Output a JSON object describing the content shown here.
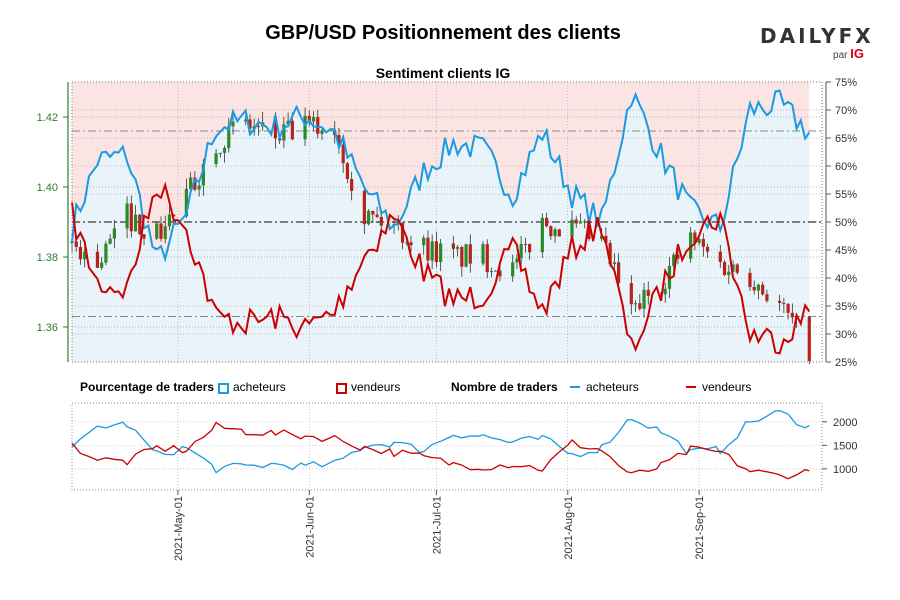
{
  "header": {
    "title": "GBP/USD Positionnement des clients",
    "subtitle": "Sentiment clients IG",
    "brand": {
      "name_left": "DAILY",
      "name_right": "FX",
      "by": "par",
      "by_brand": "IG"
    }
  },
  "colors": {
    "buyers": "#1a9ae0",
    "sellers": "#cc0000",
    "up_candle": "#2a8a2a",
    "down_candle": "#b8221a",
    "bg_buyers": "#e8f3fa",
    "bg_sellers": "#fbe4e4",
    "left_axis": "#2e7d2e"
  },
  "legend": {
    "pct_label": "Pourcentage de traders",
    "pct_buyers": "acheteurs",
    "pct_sellers": "vendeurs",
    "count_label": "Nombre de traders",
    "count_buyers": "acheteurs",
    "count_sellers": "vendeurs"
  },
  "chart_data": [
    {
      "type": "candlestick",
      "title": "Sentiment clients IG",
      "y_left_label": "",
      "y_left_ticks": [
        "1.36",
        "1.38",
        "1.40",
        "1.42"
      ],
      "y_left_range": [
        1.35,
        1.43
      ],
      "y_right_ticks": [
        "25%",
        "30%",
        "35%",
        "40%",
        "45%",
        "50%",
        "55%",
        "60%",
        "65%",
        "70%",
        "75%"
      ],
      "y_right_range": [
        25,
        75
      ],
      "x_range": [
        "2021-04-06",
        "2021-09-30"
      ],
      "x_ticks": [
        "2021-May-01",
        "2021-Jun-01",
        "2021-Jul-01",
        "2021-Aug-01",
        "2021-Sep-01"
      ],
      "reference_lines": [
        {
          "y": 1.363
        },
        {
          "y": 1.39
        },
        {
          "y": 1.416
        }
      ],
      "price_close_weekly": [
        [
          "2021-04-06",
          1.384
        ],
        [
          "2021-04-12",
          1.378
        ],
        [
          "2021-04-19",
          1.392
        ],
        [
          "2021-04-26",
          1.386
        ],
        [
          "2021-05-03",
          1.397
        ],
        [
          "2021-05-10",
          1.413
        ],
        [
          "2021-05-17",
          1.418
        ],
        [
          "2021-05-24",
          1.414
        ],
        [
          "2021-05-31",
          1.417
        ],
        [
          "2021-06-07",
          1.417
        ],
        [
          "2021-06-14",
          1.392
        ],
        [
          "2021-06-21",
          1.389
        ],
        [
          "2021-06-28",
          1.383
        ],
        [
          "2021-07-05",
          1.38
        ],
        [
          "2021-07-12",
          1.38
        ],
        [
          "2021-07-19",
          1.376
        ],
        [
          "2021-07-26",
          1.39
        ],
        [
          "2021-08-02",
          1.388
        ],
        [
          "2021-08-09",
          1.384
        ],
        [
          "2021-08-16",
          1.364
        ],
        [
          "2021-08-23",
          1.373
        ],
        [
          "2021-08-30",
          1.385
        ],
        [
          "2021-09-06",
          1.378
        ],
        [
          "2021-09-13",
          1.375
        ],
        [
          "2021-09-20",
          1.366
        ],
        [
          "2021-09-27",
          1.354
        ]
      ],
      "series": [
        {
          "name": "acheteurs",
          "unit": "%",
          "points": [
            [
              "2021-04-06",
              49
            ],
            [
              "2021-04-12",
              61
            ],
            [
              "2021-04-19",
              62
            ],
            [
              "2021-04-26",
              43
            ],
            [
              "2021-05-03",
              51
            ],
            [
              "2021-05-10",
              67
            ],
            [
              "2021-05-17",
              68
            ],
            [
              "2021-05-24",
              67
            ],
            [
              "2021-05-31",
              69
            ],
            [
              "2021-06-07",
              66
            ],
            [
              "2021-06-14",
              56
            ],
            [
              "2021-06-21",
              49
            ],
            [
              "2021-06-28",
              59
            ],
            [
              "2021-07-05",
              64
            ],
            [
              "2021-07-12",
              63
            ],
            [
              "2021-07-19",
              55
            ],
            [
              "2021-07-26",
              66
            ],
            [
              "2021-08-02",
              55
            ],
            [
              "2021-08-09",
              50
            ],
            [
              "2021-08-16",
              73
            ],
            [
              "2021-08-23",
              62
            ],
            [
              "2021-08-30",
              52
            ],
            [
              "2021-09-06",
              49
            ],
            [
              "2021-09-13",
              70
            ],
            [
              "2021-09-20",
              71
            ],
            [
              "2021-09-27",
              66
            ]
          ]
        },
        {
          "name": "vendeurs",
          "unit": "%",
          "points": [
            [
              "2021-04-06",
              51
            ],
            [
              "2021-04-12",
              39
            ],
            [
              "2021-04-19",
              38
            ],
            [
              "2021-04-26",
              57
            ],
            [
              "2021-05-03",
              49
            ],
            [
              "2021-05-10",
              33
            ],
            [
              "2021-05-17",
              32
            ],
            [
              "2021-05-24",
              33
            ],
            [
              "2021-05-31",
              31
            ],
            [
              "2021-06-07",
              34
            ],
            [
              "2021-06-14",
              44
            ],
            [
              "2021-06-21",
              51
            ],
            [
              "2021-06-28",
              41
            ],
            [
              "2021-07-05",
              36
            ],
            [
              "2021-07-12",
              37
            ],
            [
              "2021-07-19",
              45
            ],
            [
              "2021-07-26",
              34
            ],
            [
              "2021-08-02",
              45
            ],
            [
              "2021-08-09",
              50
            ],
            [
              "2021-08-16",
              27
            ],
            [
              "2021-08-23",
              38
            ],
            [
              "2021-08-30",
              48
            ],
            [
              "2021-09-06",
              51
            ],
            [
              "2021-09-13",
              30
            ],
            [
              "2021-09-20",
              29
            ],
            [
              "2021-09-27",
              34
            ]
          ]
        }
      ]
    },
    {
      "type": "line",
      "title": "Nombre de traders",
      "y_ticks": [
        "1000",
        "1500",
        "2000"
      ],
      "y_range": [
        550,
        2400
      ],
      "x_range": [
        "2021-04-06",
        "2021-09-30"
      ],
      "x_ticks": [
        "2021-May-01",
        "2021-Jun-01",
        "2021-Jul-01",
        "2021-Aug-01",
        "2021-Sep-01"
      ],
      "series": [
        {
          "name": "acheteurs",
          "points": [
            [
              "2021-04-06",
              1400
            ],
            [
              "2021-04-12",
              1900
            ],
            [
              "2021-04-19",
              1950
            ],
            [
              "2021-04-26",
              1300
            ],
            [
              "2021-05-03",
              1450
            ],
            [
              "2021-05-10",
              1000
            ],
            [
              "2021-05-17",
              1050
            ],
            [
              "2021-05-24",
              1100
            ],
            [
              "2021-05-31",
              1050
            ],
            [
              "2021-06-07",
              1100
            ],
            [
              "2021-06-14",
              1500
            ],
            [
              "2021-06-21",
              1550
            ],
            [
              "2021-06-28",
              1400
            ],
            [
              "2021-07-05",
              1750
            ],
            [
              "2021-07-12",
              1700
            ],
            [
              "2021-07-19",
              1550
            ],
            [
              "2021-07-26",
              1650
            ],
            [
              "2021-08-02",
              1300
            ],
            [
              "2021-08-09",
              1450
            ],
            [
              "2021-08-16",
              2100
            ],
            [
              "2021-08-23",
              1800
            ],
            [
              "2021-08-30",
              1350
            ],
            [
              "2021-09-06",
              1400
            ],
            [
              "2021-09-13",
              2000
            ],
            [
              "2021-09-20",
              2200
            ],
            [
              "2021-09-27",
              1900
            ]
          ]
        },
        {
          "name": "vendeurs",
          "points": [
            [
              "2021-04-06",
              1500
            ],
            [
              "2021-04-12",
              1200
            ],
            [
              "2021-04-19",
              1150
            ],
            [
              "2021-04-26",
              1450
            ],
            [
              "2021-05-03",
              1400
            ],
            [
              "2021-05-10",
              1900
            ],
            [
              "2021-05-17",
              1800
            ],
            [
              "2021-05-24",
              1750
            ],
            [
              "2021-05-31",
              1700
            ],
            [
              "2021-06-07",
              1650
            ],
            [
              "2021-06-14",
              1450
            ],
            [
              "2021-06-21",
              1350
            ],
            [
              "2021-06-28",
              1250
            ],
            [
              "2021-07-05",
              1100
            ],
            [
              "2021-07-12",
              1050
            ],
            [
              "2021-07-19",
              1100
            ],
            [
              "2021-07-26",
              1000
            ],
            [
              "2021-08-02",
              1550
            ],
            [
              "2021-08-09",
              1400
            ],
            [
              "2021-08-16",
              850
            ],
            [
              "2021-08-23",
              1050
            ],
            [
              "2021-08-30",
              1400
            ],
            [
              "2021-09-06",
              1350
            ],
            [
              "2021-09-13",
              950
            ],
            [
              "2021-09-20",
              850
            ],
            [
              "2021-09-27",
              950
            ]
          ]
        }
      ]
    }
  ]
}
